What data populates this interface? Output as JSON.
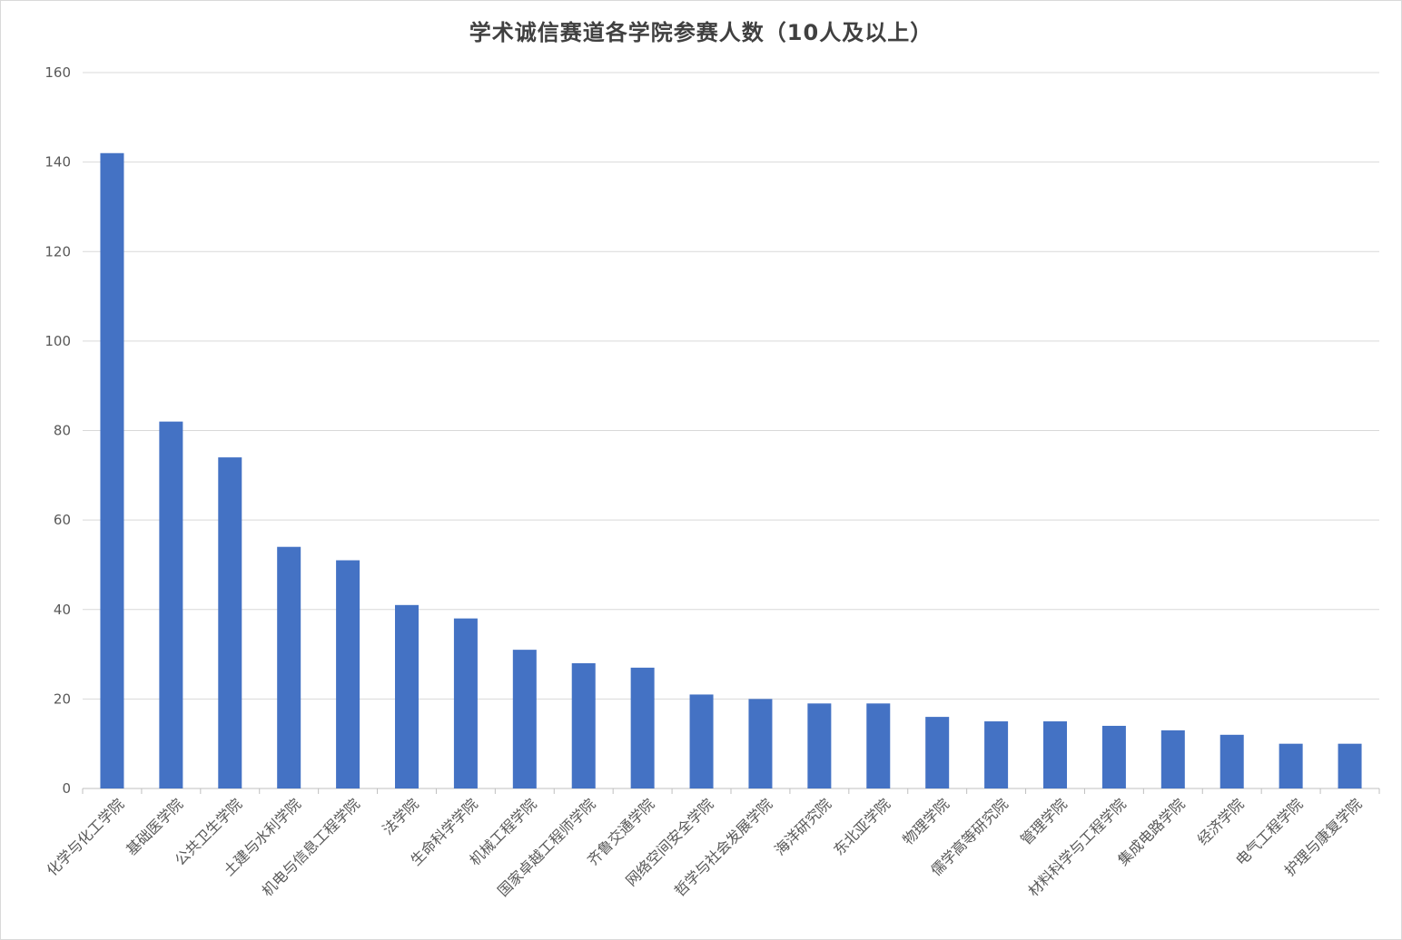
{
  "chart_data": {
    "type": "bar",
    "title": "学术诚信赛道各学院参赛人数（10人及以上）",
    "xlabel": "",
    "ylabel": "",
    "ylim": [
      0,
      160
    ],
    "yticks": [
      0,
      20,
      40,
      60,
      80,
      100,
      120,
      140,
      160
    ],
    "grid": true,
    "legend": "none",
    "bar_color": "#4472C4",
    "categories": [
      "化学与化工学院",
      "基础医学院",
      "公共卫生学院",
      "土建与水利学院",
      "机电与信息工程学院",
      "法学院",
      "生命科学学院",
      "机械工程学院",
      "国家卓越工程师学院",
      "齐鲁交通学院",
      "网络空间安全学院",
      "哲学与社会发展学院",
      "海洋研究院",
      "东北亚学院",
      "物理学院",
      "儒学高等研究院",
      "管理学院",
      "材料科学与工程学院",
      "集成电路学院",
      "经济学院",
      "电气工程学院",
      "护理与康复学院"
    ],
    "values": [
      142,
      82,
      74,
      54,
      51,
      41,
      38,
      31,
      28,
      27,
      21,
      20,
      19,
      19,
      16,
      15,
      15,
      14,
      13,
      12,
      10,
      10
    ]
  }
}
